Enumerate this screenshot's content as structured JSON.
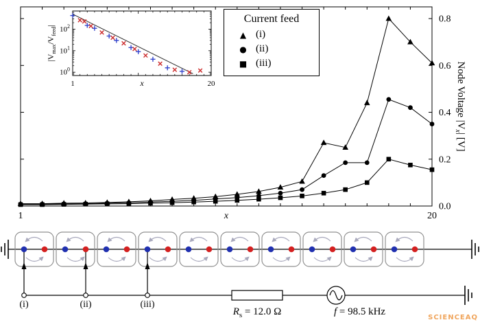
{
  "watermark": "SCIENCEAQ",
  "legend": {
    "title": "Current feed",
    "entries": [
      {
        "glyph": "▲",
        "marker": "triangle",
        "label": "(i)"
      },
      {
        "glyph": "●",
        "marker": "circle",
        "label": "(ii)"
      },
      {
        "glyph": "■",
        "marker": "square",
        "label": "(iii)"
      }
    ]
  },
  "circuit": {
    "cells": 10,
    "feed_nodes": [
      1,
      4,
      7
    ],
    "feeds": [
      {
        "label": "(i)"
      },
      {
        "label": "(ii)"
      },
      {
        "label": "(iii)"
      }
    ],
    "resistor_label": {
      "p0": "R",
      "s0": "s",
      "p1": " = 12.0 Ω"
    },
    "frequency_label": {
      "p0": "f",
      "p1": " = 98.5 kHz"
    },
    "colors": {
      "node_left": "#2030b0",
      "node_right": "#d42020",
      "arrow_gray": "#a8a8bc",
      "cell_border": "#909090"
    }
  },
  "chart_data": [
    {
      "type": "line",
      "title": "",
      "x": [
        1,
        2,
        3,
        4,
        5,
        6,
        7,
        8,
        9,
        10,
        11,
        12,
        13,
        14,
        15,
        16,
        17,
        18,
        19,
        20
      ],
      "series": [
        {
          "name": "(i)",
          "marker": "triangle",
          "color": "#000000",
          "values": [
            0.01,
            0.01,
            0.012,
            0.013,
            0.015,
            0.018,
            0.022,
            0.028,
            0.033,
            0.04,
            0.05,
            0.062,
            0.08,
            0.105,
            0.27,
            0.25,
            0.44,
            0.8,
            0.7,
            0.61
          ]
        },
        {
          "name": "(ii)",
          "marker": "circle",
          "color": "#000000",
          "values": [
            0.008,
            0.008,
            0.009,
            0.01,
            0.012,
            0.014,
            0.017,
            0.02,
            0.024,
            0.03,
            0.036,
            0.044,
            0.055,
            0.07,
            0.13,
            0.185,
            0.185,
            0.455,
            0.42,
            0.35
          ]
        },
        {
          "name": "(iii)",
          "marker": "square",
          "color": "#000000",
          "values": [
            0.006,
            0.006,
            0.007,
            0.008,
            0.009,
            0.01,
            0.012,
            0.014,
            0.017,
            0.02,
            0.024,
            0.029,
            0.035,
            0.043,
            0.055,
            0.07,
            0.1,
            0.2,
            0.175,
            0.155
          ]
        }
      ],
      "xlabel": "x",
      "xtick_labels": [
        "1",
        "20"
      ],
      "ylabel": "Node Voltage |Vx| [V]",
      "ylabel_parts": {
        "pre": "Node Voltage |V",
        "sub": "x",
        "post": "| [V]"
      },
      "xlim": [
        1,
        20
      ],
      "ylim": [
        0,
        0.85
      ],
      "yticks": [
        0,
        0.2,
        0.4,
        0.6,
        0.8
      ],
      "yaxis_side": "right",
      "grid": false,
      "legend_position": "top-center"
    },
    {
      "type": "scatter",
      "xlabel": "x",
      "xtick_labels": [
        "1",
        "20"
      ],
      "ylabel": "|Vmax/Vfeed|",
      "ylabel_parts": {
        "p0": "|V",
        "s0": "max",
        "p1": "/V",
        "s1": "feed",
        "p2": "|"
      },
      "xlim": [
        1,
        20
      ],
      "yscale": "log",
      "ylim": [
        0.7,
        700
      ],
      "ytick_decades": [
        0,
        1,
        2
      ],
      "series": [
        {
          "name": "fit-line",
          "kind": "line",
          "color": "#303030",
          "x": [
            1,
            17.5
          ],
          "y": [
            500,
            0.85
          ]
        },
        {
          "name": "plus-markers",
          "kind": "points",
          "marker": "plus",
          "color": "#3344cc",
          "x": [
            1,
            3,
            4,
            6,
            7,
            9,
            10,
            12,
            14,
            16
          ],
          "y": [
            430,
            150,
            110,
            48,
            30,
            14,
            9,
            4,
            1.6,
            1.1
          ]
        },
        {
          "name": "x-markers",
          "kind": "points",
          "marker": "cross",
          "color": "#cc2a2a",
          "x": [
            2,
            2.6,
            3.5,
            5,
            6.5,
            8,
            9.5,
            11,
            13,
            15,
            17,
            18.5
          ],
          "y": [
            260,
            230,
            140,
            70,
            40,
            22,
            12,
            6,
            2.5,
            1.3,
            1.0,
            1.2
          ]
        }
      ]
    }
  ]
}
